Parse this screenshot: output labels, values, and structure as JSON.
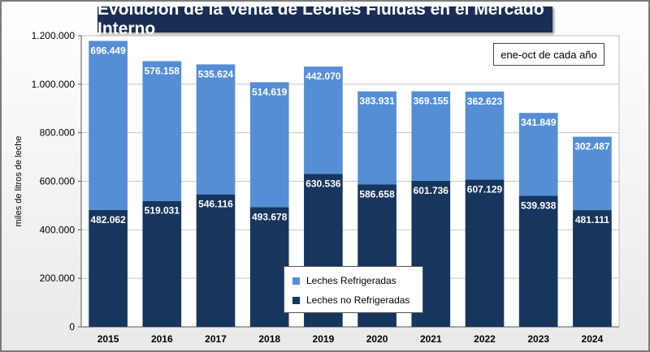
{
  "chart_data": {
    "type": "bar",
    "stacked": true,
    "title": "Evolución de la Venta de Leches Fluidas en el Mercado Interno",
    "annotation": "ene-oct de cada año",
    "xlabel": "",
    "ylabel": "miles de litros de leche",
    "ylim": [
      0,
      1200000
    ],
    "yticks": [
      "0",
      "200.000",
      "400.000",
      "600.000",
      "800.000",
      "1.000.000",
      "1.200.000"
    ],
    "grid": true,
    "legend_position": "bottom-center",
    "categories": [
      "2015",
      "2016",
      "2017",
      "2018",
      "2019",
      "2020",
      "2021",
      "2022",
      "2023",
      "2024"
    ],
    "series": [
      {
        "name": "Leches no Refrigeradas",
        "color": "#17365d",
        "values": [
          482062,
          519031,
          546116,
          493678,
          630536,
          586658,
          601736,
          607129,
          539938,
          481111
        ],
        "labels": [
          "482.062",
          "519.031",
          "546.116",
          "493.678",
          "630.536",
          "586.658",
          "601.736",
          "607.129",
          "539.938",
          "481.111"
        ]
      },
      {
        "name": "Leches Refrigeradas",
        "color": "#558ed5",
        "values": [
          696449,
          576158,
          535624,
          514619,
          442070,
          383931,
          369155,
          362623,
          341849,
          302487
        ],
        "labels": [
          "696.449",
          "576.158",
          "535.624",
          "514.619",
          "442.070",
          "383.931",
          "369.155",
          "362.623",
          "341.849",
          "302.487"
        ]
      }
    ]
  }
}
